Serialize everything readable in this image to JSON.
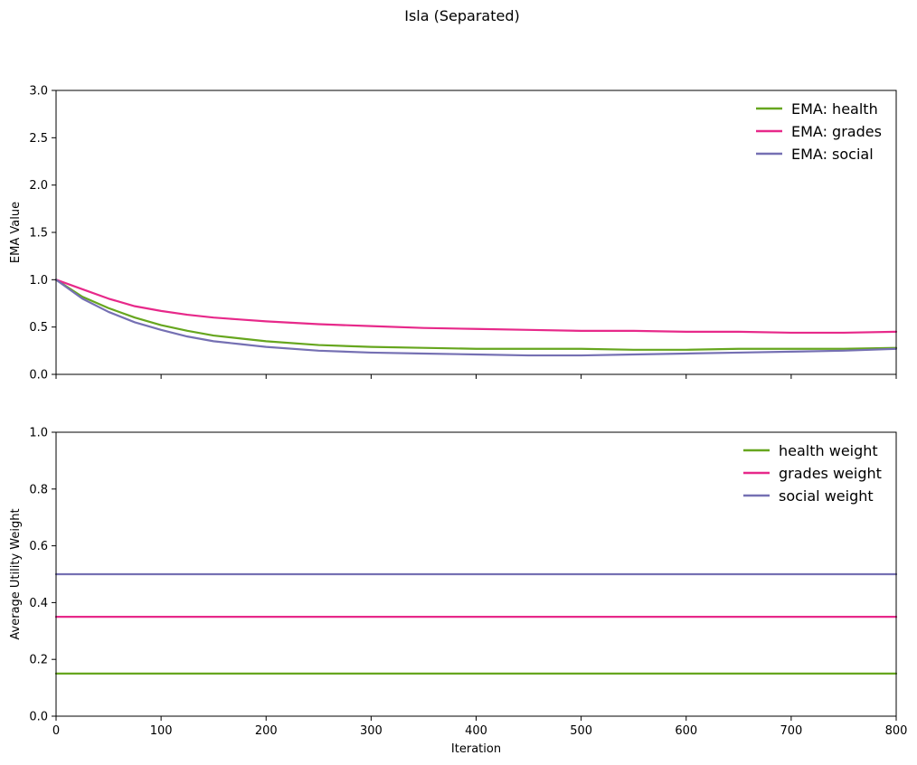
{
  "title": "Isla (Separated)",
  "chart_data": [
    {
      "type": "line",
      "ylabel": "EMA Value",
      "xlabel": "",
      "xlim": [
        0,
        800
      ],
      "ylim": [
        0,
        3.0
      ],
      "xticks": [
        0,
        100,
        200,
        300,
        400,
        500,
        600,
        700,
        800
      ],
      "yticks": [
        "0.0",
        "0.5",
        "1.0",
        "1.5",
        "2.0",
        "2.5",
        "3.0"
      ],
      "show_xtick_labels": false,
      "grid": false,
      "legend": "top-right",
      "x": [
        0,
        25,
        50,
        75,
        100,
        125,
        150,
        175,
        200,
        250,
        300,
        350,
        400,
        450,
        500,
        550,
        600,
        650,
        700,
        750,
        800
      ],
      "series": [
        {
          "name": "EMA: health",
          "color": "#66a61e",
          "values": [
            1.0,
            0.82,
            0.7,
            0.6,
            0.52,
            0.46,
            0.41,
            0.38,
            0.35,
            0.31,
            0.29,
            0.28,
            0.27,
            0.27,
            0.27,
            0.26,
            0.26,
            0.27,
            0.27,
            0.27,
            0.28
          ]
        },
        {
          "name": "EMA: grades",
          "color": "#e7298a",
          "values": [
            1.0,
            0.9,
            0.8,
            0.72,
            0.67,
            0.63,
            0.6,
            0.58,
            0.56,
            0.53,
            0.51,
            0.49,
            0.48,
            0.47,
            0.46,
            0.46,
            0.45,
            0.45,
            0.44,
            0.44,
            0.45
          ]
        },
        {
          "name": "EMA: social",
          "color": "#7570b3",
          "values": [
            1.0,
            0.8,
            0.66,
            0.55,
            0.47,
            0.4,
            0.35,
            0.32,
            0.29,
            0.25,
            0.23,
            0.22,
            0.21,
            0.2,
            0.2,
            0.21,
            0.22,
            0.23,
            0.24,
            0.25,
            0.27
          ]
        }
      ]
    },
    {
      "type": "line",
      "ylabel": "Average Utility Weight",
      "xlabel": "Iteration",
      "xlim": [
        0,
        800
      ],
      "ylim": [
        0,
        1.0
      ],
      "xticks": [
        0,
        100,
        200,
        300,
        400,
        500,
        600,
        700,
        800
      ],
      "yticks": [
        "0.0",
        "0.2",
        "0.4",
        "0.6",
        "0.8",
        "1.0"
      ],
      "show_xtick_labels": true,
      "grid": false,
      "legend": "top-right",
      "x": [
        0,
        800
      ],
      "series": [
        {
          "name": "health weight",
          "color": "#66a61e",
          "values": [
            0.15,
            0.15
          ]
        },
        {
          "name": "grades weight",
          "color": "#e7298a",
          "values": [
            0.35,
            0.35
          ]
        },
        {
          "name": "social weight",
          "color": "#7570b3",
          "values": [
            0.5,
            0.5
          ]
        }
      ]
    }
  ]
}
